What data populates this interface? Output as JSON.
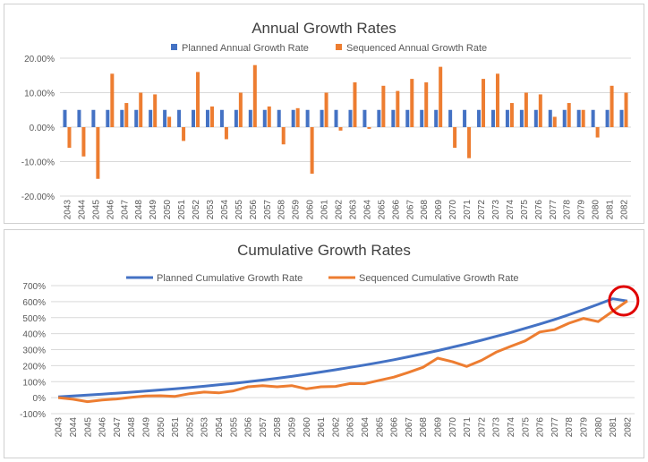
{
  "chart_data": [
    {
      "type": "bar",
      "title": "Annual Growth Rates",
      "categories": [
        "2043",
        "2044",
        "2045",
        "2046",
        "2047",
        "2048",
        "2049",
        "2050",
        "2051",
        "2052",
        "2053",
        "2054",
        "2055",
        "2056",
        "2057",
        "2058",
        "2059",
        "2060",
        "2061",
        "2062",
        "2063",
        "2064",
        "2065",
        "2066",
        "2067",
        "2068",
        "2069",
        "2070",
        "2071",
        "2072",
        "2073",
        "2074",
        "2075",
        "2076",
        "2077",
        "2078",
        "2079",
        "2080",
        "2081",
        "2082"
      ],
      "series": [
        {
          "name": "Planned Annual Growth Rate",
          "color": "#4472c4",
          "values": [
            5,
            5,
            5,
            5,
            5,
            5,
            5,
            5,
            5,
            5,
            5,
            5,
            5,
            5,
            5,
            5,
            5,
            5,
            5,
            5,
            5,
            5,
            5,
            5,
            5,
            5,
            5,
            5,
            5,
            5,
            5,
            5,
            5,
            5,
            5,
            5,
            5,
            5,
            5,
            5
          ]
        },
        {
          "name": "Sequenced Annual Growth Rate",
          "color": "#ed7d31",
          "values": [
            -6,
            -8.5,
            -15,
            15.5,
            7,
            10,
            9.5,
            3,
            -4,
            16,
            6,
            -3.5,
            10,
            18,
            6,
            -5,
            5.5,
            -13.5,
            10,
            -1,
            13,
            -0.5,
            12,
            10.5,
            14,
            13,
            17.5,
            -6,
            -9,
            14,
            15.5,
            7,
            10,
            9.5,
            3,
            7,
            5,
            -3,
            12,
            10
          ]
        }
      ],
      "ylim": [
        -20,
        20
      ],
      "yticks": [
        "20.00%",
        "10.00%",
        "0.00%",
        "-10.00%",
        "-20.00%"
      ],
      "ytick_values": [
        20,
        10,
        0,
        -10,
        -20
      ],
      "legend": "top"
    },
    {
      "type": "line",
      "title": "Cumulative Growth Rates",
      "categories": [
        "2043",
        "2044",
        "2045",
        "2046",
        "2047",
        "2048",
        "2049",
        "2050",
        "2051",
        "2052",
        "2053",
        "2054",
        "2055",
        "2056",
        "2057",
        "2058",
        "2059",
        "2060",
        "2061",
        "2062",
        "2063",
        "2064",
        "2065",
        "2066",
        "2067",
        "2068",
        "2069",
        "2070",
        "2071",
        "2072",
        "2073",
        "2074",
        "2075",
        "2076",
        "2077",
        "2078",
        "2079",
        "2080",
        "2081",
        "2082"
      ],
      "series": [
        {
          "name": "Planned Cumulative Growth Rate",
          "color": "#4472c4",
          "values": [
            5,
            10,
            16,
            22,
            28,
            34,
            41,
            48,
            55,
            63,
            71,
            80,
            89,
            99,
            110,
            121,
            133,
            146,
            160,
            174,
            189,
            204,
            220,
            237,
            255,
            274,
            294,
            315,
            336,
            359,
            383,
            407,
            433,
            460,
            488,
            518,
            550,
            583,
            618,
            604
          ]
        },
        {
          "name": "Sequenced Cumulative Growth Rate",
          "color": "#ed7d31",
          "values": [
            0,
            -10,
            -25,
            -15,
            -8,
            2,
            10,
            12,
            8,
            25,
            35,
            30,
            42,
            68,
            75,
            68,
            75,
            55,
            68,
            70,
            88,
            87,
            108,
            128,
            158,
            190,
            247,
            225,
            195,
            233,
            284,
            320,
            355,
            410,
            425,
            465,
            495,
            475,
            540,
            605
          ]
        }
      ],
      "ylim": [
        -100,
        700
      ],
      "yticks": [
        "700%",
        "600%",
        "500%",
        "400%",
        "300%",
        "200%",
        "100%",
        "0%",
        "-100%"
      ],
      "ytick_values": [
        700,
        600,
        500,
        400,
        300,
        200,
        100,
        0,
        -100
      ],
      "legend": "top",
      "highlight_color": "#e00000"
    }
  ]
}
